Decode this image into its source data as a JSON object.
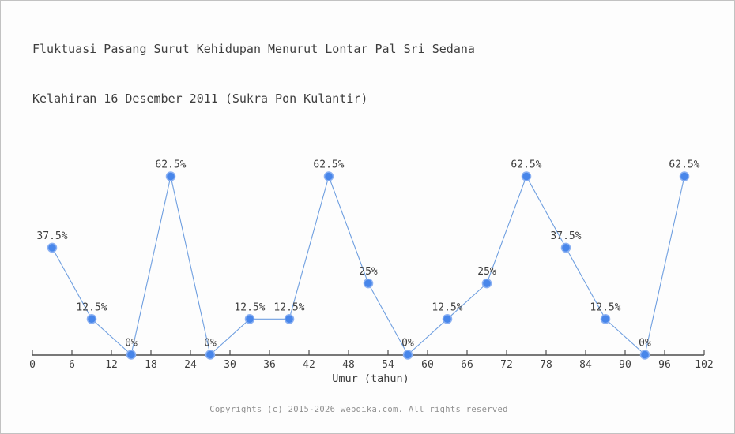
{
  "header": {
    "title_line1": "Fluktuasi Pasang Surut Kehidupan Menurut Lontar Pal Sri Sedana",
    "title_line2": "Kelahiran 16 Desember 2011 (Sukra Pon Kulantir)"
  },
  "chart_data": {
    "type": "line",
    "title": "Fluktuasi Pasang Surut Kehidupan Menurut Lontar Pal Sri Sedana Kelahiran 16 Desember 2011 (Sukra Pon Kulantir)",
    "xlabel": "Umur (tahun)",
    "ylabel": "",
    "x": [
      3,
      9,
      15,
      21,
      27,
      33,
      39,
      45,
      51,
      57,
      63,
      69,
      75,
      81,
      87,
      93,
      99
    ],
    "values": [
      37.5,
      12.5,
      0,
      62.5,
      0,
      12.5,
      12.5,
      62.5,
      25,
      0,
      12.5,
      25,
      62.5,
      37.5,
      12.5,
      0,
      62.5
    ],
    "point_labels": [
      "37.5%",
      "12.5%",
      "0%",
      "62.5%",
      "0%",
      "12.5%",
      "12.5%",
      "62.5%",
      "25%",
      "0%",
      "12.5%",
      "25%",
      "62.5%",
      "37.5%",
      "12.5%",
      "0%",
      "62.5%"
    ],
    "x_ticks": [
      0,
      6,
      12,
      18,
      24,
      30,
      36,
      42,
      48,
      54,
      60,
      66,
      72,
      78,
      84,
      90,
      96,
      102
    ],
    "xlim": [
      0,
      102
    ],
    "ylim": [
      0,
      100
    ],
    "grid": false,
    "legend_position": "none",
    "colors": {
      "line": "#6f9fe0",
      "marker_fill": "#4886ea",
      "marker_stroke": "#8ab0f2",
      "axis": "#4d4d4d",
      "text": "#3d3d3d"
    }
  },
  "footer": {
    "copyright": "Copyrights (c) 2015-2026 webdika.com. All rights reserved"
  }
}
